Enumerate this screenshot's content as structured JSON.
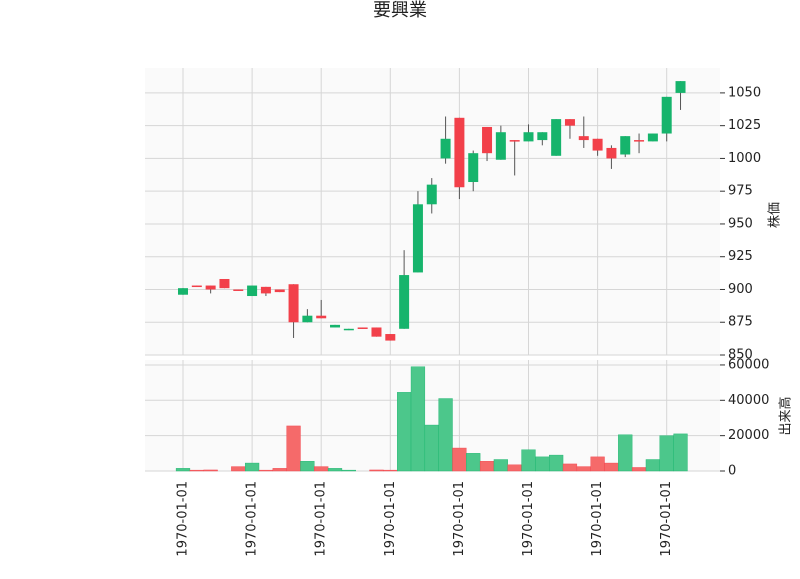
{
  "chart_data": {
    "type": "candlestick",
    "title": "要興業",
    "ylabel": "株価",
    "volume_label": "出来高",
    "categories": [
      "1970-01-01",
      null,
      null,
      null,
      null,
      "1970-01-01",
      null,
      null,
      null,
      null,
      "1970-01-01",
      null,
      null,
      null,
      null,
      "1970-01-01",
      null,
      null,
      null,
      null,
      "1970-01-01",
      null,
      null,
      null,
      null,
      "1970-01-01",
      null,
      null,
      null,
      null,
      "1970-01-01",
      null,
      null,
      null,
      null,
      "1970-01-01",
      null
    ],
    "open": [
      896,
      903,
      903,
      908,
      900,
      895,
      902,
      900,
      904,
      875,
      880,
      871,
      869,
      871,
      871,
      866,
      870,
      913,
      965,
      1000,
      1031,
      982,
      1024,
      999,
      1014,
      1013,
      1014,
      1002,
      1030,
      1017,
      1015,
      1008,
      1003,
      1014,
      1013,
      1019,
      1050
    ],
    "high": [
      901,
      903,
      903,
      908,
      900,
      903,
      902,
      900,
      904,
      885,
      892,
      873,
      870,
      871,
      871,
      866,
      930,
      975,
      985,
      1032,
      1031,
      1006,
      1024,
      1025,
      1014,
      1026,
      1020,
      1030,
      1030,
      1032,
      1015,
      1010,
      1017,
      1019,
      1019,
      1047,
      1059
    ],
    "low": [
      896,
      902,
      897,
      901,
      899,
      895,
      895,
      898,
      863,
      875,
      878,
      871,
      869,
      870,
      864,
      861,
      870,
      913,
      958,
      996,
      969,
      975,
      998,
      999,
      987,
      1013,
      1010,
      1002,
      1015,
      1008,
      1002,
      992,
      1001,
      1004,
      1013,
      1013,
      1037
    ],
    "close": [
      901,
      902,
      900,
      901,
      899,
      903,
      897,
      898,
      875,
      880,
      878,
      873,
      870,
      870,
      864,
      861,
      911,
      965,
      980,
      1015,
      978,
      1004,
      1004,
      1020,
      1013,
      1020,
      1020,
      1030,
      1025,
      1014,
      1006,
      1000,
      1017,
      1013,
      1019,
      1047,
      1059
    ],
    "volume": [
      1500,
      500,
      600,
      0,
      2500,
      4500,
      500,
      1500,
      25500,
      5500,
      2500,
      1500,
      500,
      0,
      600,
      500,
      44500,
      59000,
      26000,
      41000,
      13000,
      10000,
      5500,
      6500,
      3500,
      12000,
      8000,
      9000,
      4000,
      2500,
      8000,
      4500,
      20500,
      2000,
      6500,
      20000,
      21000
    ],
    "up_color": "#16b46c",
    "down_color": "#f2404a",
    "volume_up_color": "#4cc78b",
    "volume_down_color": "#f56a6a",
    "ylim": [
      850,
      1069
    ],
    "yticks": [
      850,
      875,
      900,
      925,
      950,
      975,
      1000,
      1025,
      1050
    ],
    "vlim": [
      0,
      62800
    ],
    "vticks": [
      0,
      20000,
      40000,
      60000
    ],
    "grid": true
  }
}
